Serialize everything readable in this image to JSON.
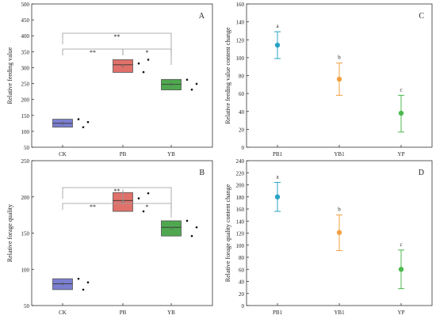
{
  "chart_data": [
    {
      "panel": "A",
      "type": "box",
      "xlabel": "",
      "ylabel": "Relative feeding value",
      "ylim": [
        50,
        500
      ],
      "yticks": [
        50,
        100,
        150,
        200,
        250,
        300,
        350,
        400,
        450,
        500
      ],
      "categories": [
        "CK",
        "PB",
        "YB"
      ],
      "boxes": [
        {
          "category": "CK",
          "q1": 113,
          "median": 125,
          "q3": 138,
          "mean": 125,
          "color": "#7b7fd0",
          "points": [
            138,
            113,
            129
          ]
        },
        {
          "category": "PB",
          "q1": 285,
          "median": 309,
          "q3": 325,
          "mean": 306,
          "color": "#e0716a",
          "points": [
            313,
            286,
            325
          ]
        },
        {
          "category": "YB",
          "q1": 230,
          "median": 248,
          "q3": 263,
          "mean": 247,
          "color": "#4fa84f",
          "points": [
            262,
            231,
            249
          ]
        }
      ],
      "significance": [
        {
          "from": "CK",
          "to": "PB",
          "label": "**",
          "level": "low"
        },
        {
          "from": "PB",
          "to": "YB",
          "label": "*",
          "level": "low"
        },
        {
          "from": "CK",
          "to": "YB",
          "label": "**",
          "level": "high"
        }
      ]
    },
    {
      "panel": "B",
      "type": "box",
      "xlabel": "",
      "ylabel": "Relative forage quality",
      "ylim": [
        50,
        250
      ],
      "yticks": [
        50,
        100,
        150,
        200,
        250
      ],
      "categories": [
        "CK",
        "PB",
        "YB"
      ],
      "boxes": [
        {
          "category": "CK",
          "q1": 72,
          "median": 80,
          "q3": 87,
          "mean": 80,
          "color": "#7b7fd0",
          "points": [
            87,
            72,
            82
          ]
        },
        {
          "category": "PB",
          "q1": 180,
          "median": 195,
          "q3": 206,
          "mean": 194,
          "color": "#e0716a",
          "points": [
            198,
            180,
            205
          ]
        },
        {
          "category": "YB",
          "q1": 146,
          "median": 158,
          "q3": 167,
          "mean": 157,
          "color": "#4fa84f",
          "points": [
            167,
            146,
            158
          ]
        }
      ],
      "significance": [
        {
          "from": "CK",
          "to": "PB",
          "label": "**",
          "level": "low"
        },
        {
          "from": "PB",
          "to": "YB",
          "label": "*",
          "level": "low"
        },
        {
          "from": "CK",
          "to": "YB",
          "label": "**",
          "level": "high"
        }
      ]
    },
    {
      "panel": "C",
      "type": "errorbar",
      "xlabel": "",
      "ylabel": "Relative feeding value content change",
      "ylim": [
        0,
        160
      ],
      "yticks": [
        0,
        20,
        40,
        60,
        80,
        100,
        120,
        140,
        160
      ],
      "categories": [
        "PB1",
        "YB1",
        "YP"
      ],
      "points": [
        {
          "category": "PB1",
          "mean": 114,
          "low": 99,
          "high": 129,
          "letter": "a",
          "color": "#2aa3c3"
        },
        {
          "category": "YB1",
          "mean": 76,
          "low": 58,
          "high": 94,
          "letter": "b",
          "color": "#f0a040"
        },
        {
          "category": "YP",
          "mean": 38,
          "low": 17,
          "high": 58,
          "letter": "c",
          "color": "#4cb84c"
        }
      ]
    },
    {
      "panel": "D",
      "type": "errorbar",
      "xlabel": "",
      "ylabel": "Relative forage quality content change",
      "ylim": [
        0,
        240
      ],
      "yticks": [
        0,
        20,
        40,
        60,
        80,
        100,
        120,
        140,
        160,
        180,
        200,
        220,
        240
      ],
      "categories": [
        "PB1",
        "YB1",
        "YP"
      ],
      "points": [
        {
          "category": "PB1",
          "mean": 180,
          "low": 156,
          "high": 204,
          "letter": "a",
          "color": "#2aa3c3"
        },
        {
          "category": "YB1",
          "mean": 121,
          "low": 91,
          "high": 150,
          "letter": "b",
          "color": "#f0a040"
        },
        {
          "category": "YP",
          "mean": 60,
          "low": 28,
          "high": 92,
          "letter": "c",
          "color": "#4cb84c"
        }
      ]
    }
  ]
}
